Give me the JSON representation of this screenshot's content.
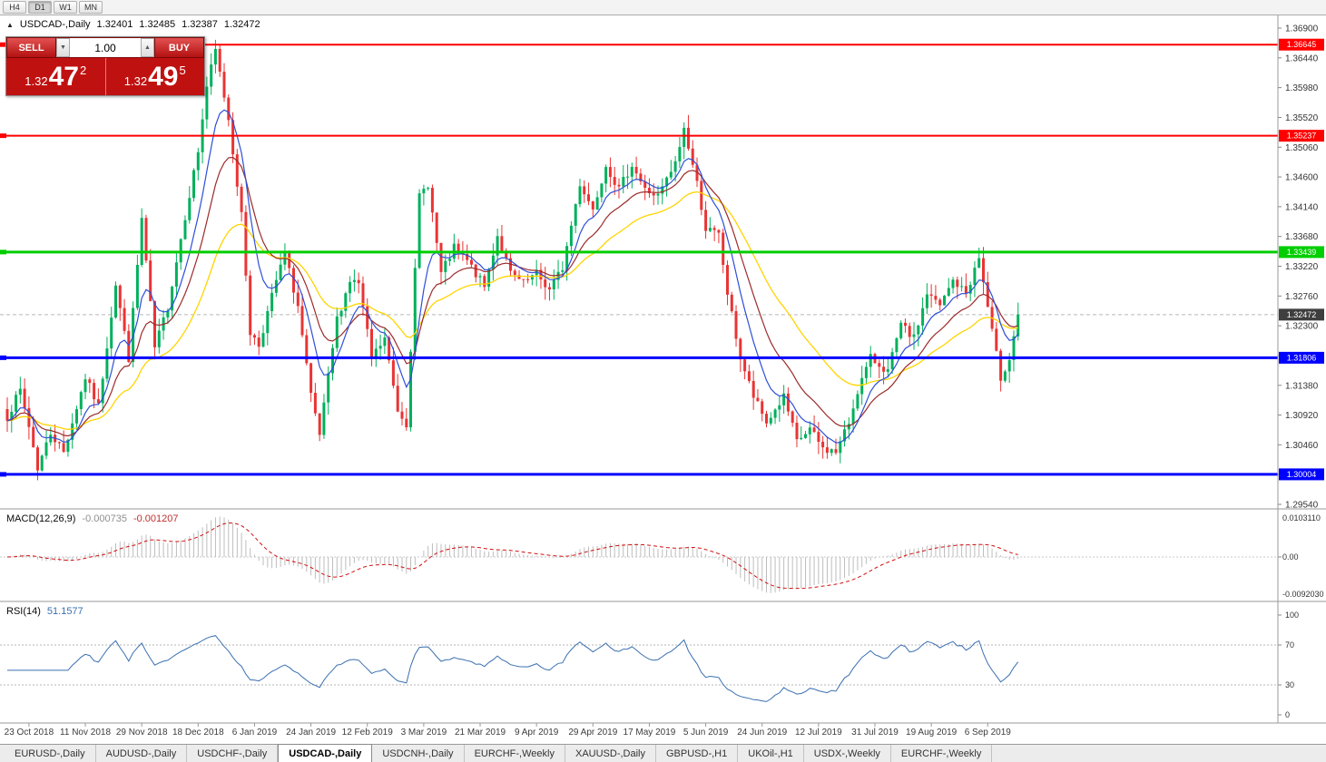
{
  "toolbar": {
    "timeframes": [
      "H4",
      "D1",
      "W1",
      "MN"
    ],
    "active": "D1"
  },
  "icons": {
    "collapse": "▲",
    "vol_down": "▼",
    "vol_up": "▲"
  },
  "chart": {
    "symbol_period": "USDCAD-,Daily",
    "ohlc": {
      "open": "1.32401",
      "high": "1.32485",
      "low": "1.32387",
      "close": "1.32472"
    },
    "axis": {
      "max": 1.369,
      "min": 1.2954,
      "step": 0.0046,
      "decimals": 5
    }
  },
  "trade_panel": {
    "sell_label": "SELL",
    "buy_label": "BUY",
    "volume": "1.00",
    "sell_price": {
      "prefix": "1.32",
      "big": "47",
      "sup": "2"
    },
    "buy_price": {
      "prefix": "1.32",
      "big": "49",
      "sup": "5"
    }
  },
  "chart_data": {
    "type": "candlestick",
    "symbol": "USDCAD",
    "timeframe": "Daily",
    "x_range": [
      "23 Oct 2018",
      "13 Sep 2019"
    ],
    "y_range": [
      1.2954,
      1.369
    ],
    "candle_count": 234,
    "waypoints": [
      [
        0,
        1.309
      ],
      [
        3,
        1.313
      ],
      [
        5,
        1.3075
      ],
      [
        7,
        1.301
      ],
      [
        10,
        1.3065
      ],
      [
        13,
        1.3035
      ],
      [
        18,
        1.315
      ],
      [
        21,
        1.3105
      ],
      [
        25,
        1.3295
      ],
      [
        28,
        1.318
      ],
      [
        31,
        1.3395
      ],
      [
        34,
        1.3195
      ],
      [
        37,
        1.326
      ],
      [
        41,
        1.34
      ],
      [
        44,
        1.35
      ],
      [
        46,
        1.36
      ],
      [
        48,
        1.3655
      ],
      [
        51,
        1.355
      ],
      [
        54,
        1.34
      ],
      [
        56,
        1.322
      ],
      [
        58,
        1.32
      ],
      [
        62,
        1.33
      ],
      [
        64,
        1.334
      ],
      [
        67,
        1.326
      ],
      [
        70,
        1.312
      ],
      [
        72,
        1.306
      ],
      [
        76,
        1.324
      ],
      [
        79,
        1.33
      ],
      [
        81,
        1.3295
      ],
      [
        84,
        1.318
      ],
      [
        87,
        1.321
      ],
      [
        90,
        1.31
      ],
      [
        92,
        1.308
      ],
      [
        95,
        1.343
      ],
      [
        97,
        1.345
      ],
      [
        100,
        1.331
      ],
      [
        103,
        1.335
      ],
      [
        106,
        1.333
      ],
      [
        110,
        1.329
      ],
      [
        113,
        1.337
      ],
      [
        116,
        1.331
      ],
      [
        119,
        1.3295
      ],
      [
        122,
        1.331
      ],
      [
        125,
        1.3285
      ],
      [
        128,
        1.332
      ],
      [
        132,
        1.345
      ],
      [
        135,
        1.341
      ],
      [
        138,
        1.348
      ],
      [
        141,
        1.344
      ],
      [
        144,
        1.348
      ],
      [
        147,
        1.344
      ],
      [
        150,
        1.343
      ],
      [
        154,
        1.348
      ],
      [
        156,
        1.3535
      ],
      [
        159,
        1.345
      ],
      [
        161,
        1.338
      ],
      [
        164,
        1.337
      ],
      [
        166,
        1.328
      ],
      [
        169,
        1.318
      ],
      [
        172,
        1.312
      ],
      [
        175,
        1.308
      ],
      [
        179,
        1.312
      ],
      [
        182,
        1.305
      ],
      [
        185,
        1.307
      ],
      [
        188,
        1.304
      ],
      [
        191,
        1.3035
      ],
      [
        194,
        1.308
      ],
      [
        196,
        1.313
      ],
      [
        199,
        1.318
      ],
      [
        203,
        1.316
      ],
      [
        206,
        1.323
      ],
      [
        209,
        1.321
      ],
      [
        212,
        1.328
      ],
      [
        215,
        1.326
      ],
      [
        218,
        1.33
      ],
      [
        221,
        1.328
      ],
      [
        224,
        1.3335
      ],
      [
        227,
        1.322
      ],
      [
        229,
        1.315
      ],
      [
        231,
        1.318
      ],
      [
        233,
        1.3247
      ]
    ],
    "levels": [
      {
        "label": "1.36645",
        "price": 1.36645,
        "color": "#ff0000",
        "width": 2
      },
      {
        "label": "1.35237",
        "price": 1.35237,
        "color": "#ff0000",
        "width": 2
      },
      {
        "label": "1.33439",
        "price": 1.33439,
        "color": "#00ce00",
        "width": 3
      },
      {
        "label": "1.31806",
        "price": 1.31806,
        "color": "#0000ff",
        "width": 3
      },
      {
        "label": "1.30004",
        "price": 1.30004,
        "color": "#0000ff",
        "width": 3
      }
    ],
    "current_price": {
      "label": "1.32472",
      "price": 1.32472,
      "box_color": "#3e3e3e"
    },
    "colors": {
      "up": "#00b05c",
      "down": "#e93434",
      "ma_fast": "#2e4fd8",
      "ma_mid": "#9c2b2b",
      "ma_slow": "#ffd400"
    },
    "ma_periods": {
      "fast": 8,
      "mid": 16,
      "slow": 34
    }
  },
  "macd": {
    "label": "MACD(12,26,9)",
    "value_main": "-0.000735",
    "value_signal": "-0.001207",
    "params": [
      12,
      26,
      9
    ],
    "axis": {
      "max": 0.010311,
      "min": -0.009203,
      "labels": {
        "max": "0.0103110",
        "zero": "0.00",
        "min": "-0.0092030"
      }
    },
    "colors": {
      "hist": "#bdbdbd",
      "signal": "#d01010"
    }
  },
  "rsi": {
    "label": "RSI(14)",
    "value": "51.1577",
    "period": 14,
    "axis_labels": [
      "100",
      "70",
      "30",
      "0"
    ],
    "guide_levels": [
      70,
      30
    ],
    "color": "#3a6fb0"
  },
  "dates": [
    "23 Oct 2018",
    "11 Nov 2018",
    "29 Nov 2018",
    "18 Dec 2018",
    "6 Jan 2019",
    "24 Jan 2019",
    "12 Feb 2019",
    "3 Mar 2019",
    "21 Mar 2019",
    "9 Apr 2019",
    "29 Apr 2019",
    "17 May 2019",
    "5 Jun 2019",
    "24 Jun 2019",
    "12 Jul 2019",
    "31 Jul 2019",
    "19 Aug 2019",
    "6 Sep 2019"
  ],
  "tabs": {
    "items": [
      "EURUSD-,Daily",
      "AUDUSD-,Daily",
      "USDCHF-,Daily",
      "USDCAD-,Daily",
      "USDCNH-,Daily",
      "EURCHF-,Weekly",
      "XAUUSD-,Daily",
      "GBPUSD-,H1",
      "UKOil-,H1",
      "USDX-,Weekly",
      "EURCHF-,Weekly"
    ],
    "active": "USDCAD-,Daily"
  }
}
